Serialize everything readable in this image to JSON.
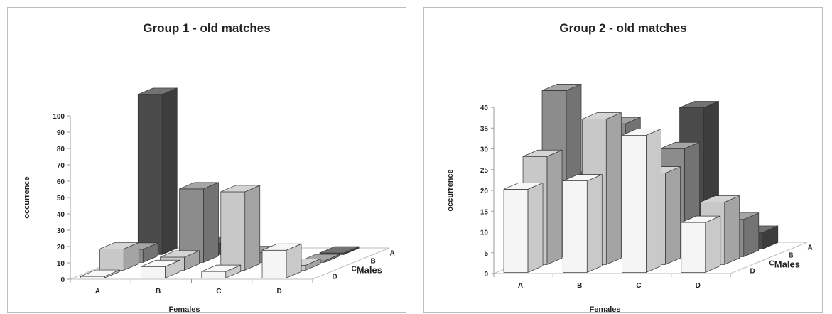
{
  "chart_data": [
    {
      "type": "bar3d",
      "title": "Group 1 - old matches",
      "xlabel": "Females",
      "ylabel": "occurrence",
      "zlabel": "Males",
      "x_categories": [
        "A",
        "B",
        "C",
        "D"
      ],
      "z_categories": [
        "A",
        "B",
        "C",
        "D"
      ],
      "ylim": [
        0,
        100
      ],
      "yticks": [
        0,
        10,
        20,
        30,
        40,
        50,
        60,
        70,
        80,
        90,
        100
      ],
      "series": [
        {
          "name": "A",
          "color": "#4a4a4a",
          "values": [
            98,
            7,
            1,
            1
          ]
        },
        {
          "name": "B",
          "color": "#8c8c8c",
          "values": [
            8,
            45,
            6,
            1
          ]
        },
        {
          "name": "C",
          "color": "#c8c8c8",
          "values": [
            13,
            8,
            48,
            3
          ]
        },
        {
          "name": "D",
          "color": "#f5f5f5",
          "values": [
            1,
            7,
            4,
            17
          ]
        }
      ]
    },
    {
      "type": "bar3d",
      "title": "Group 2 - old matches",
      "xlabel": "Females",
      "ylabel": "occurrence",
      "zlabel": "Males",
      "x_categories": [
        "A",
        "B",
        "C",
        "D"
      ],
      "z_categories": [
        "A",
        "B",
        "C",
        "D"
      ],
      "ylim": [
        0,
        40
      ],
      "yticks": [
        0,
        5,
        10,
        15,
        20,
        25,
        30,
        35,
        40
      ],
      "series": [
        {
          "name": "A",
          "color": "#4a4a4a",
          "values": [
            17,
            14,
            34,
            4
          ]
        },
        {
          "name": "B",
          "color": "#8c8c8c",
          "values": [
            40,
            32,
            26,
            9
          ]
        },
        {
          "name": "C",
          "color": "#c8c8c8",
          "values": [
            26,
            35,
            22,
            15
          ]
        },
        {
          "name": "D",
          "color": "#f5f5f5",
          "values": [
            20,
            22,
            33,
            12
          ]
        }
      ]
    }
  ]
}
